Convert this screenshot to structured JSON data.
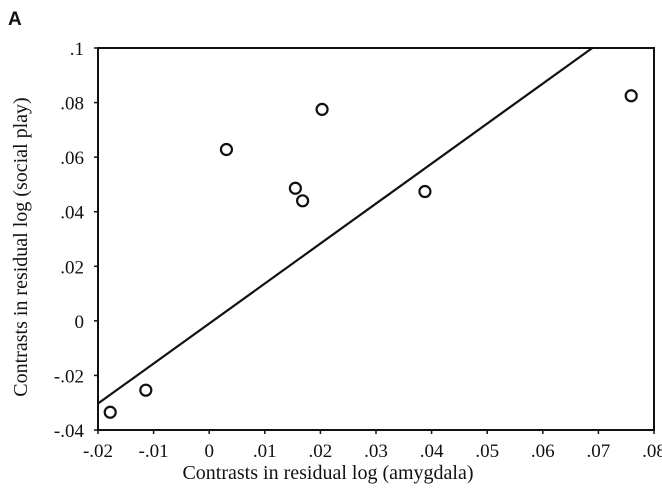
{
  "panel_label": "A",
  "chart_data": {
    "type": "scatter",
    "xlabel": "Contrasts in residual log (amygdala)",
    "ylabel": "Contrasts in residual log (social play)",
    "xlim": [
      -0.02,
      0.08
    ],
    "ylim": [
      -0.04,
      0.1
    ],
    "x_tick_labels": [
      "-.02",
      "-.01",
      "0",
      ".01",
      ".02",
      ".03",
      ".04",
      ".05",
      ".06",
      ".07",
      ".08"
    ],
    "x_tick_values": [
      -0.02,
      -0.01,
      0,
      0.01,
      0.02,
      0.03,
      0.04,
      0.05,
      0.06,
      0.07,
      0.08
    ],
    "y_tick_labels": [
      ".1",
      ".08",
      ".06",
      ".04",
      ".02",
      "0",
      "-.02",
      "-.04"
    ],
    "y_tick_values": [
      0.1,
      0.08,
      0.06,
      0.04,
      0.02,
      0,
      -0.02,
      -0.04
    ],
    "points": [
      {
        "x": -0.0178,
        "y": -0.0335
      },
      {
        "x": -0.0114,
        "y": -0.0254
      },
      {
        "x": 0.0031,
        "y": 0.0628
      },
      {
        "x": 0.0155,
        "y": 0.0486
      },
      {
        "x": 0.0168,
        "y": 0.044
      },
      {
        "x": 0.0203,
        "y": 0.0775
      },
      {
        "x": 0.0388,
        "y": 0.0474
      },
      {
        "x": 0.0759,
        "y": 0.0825
      }
    ],
    "fit_line": {
      "x": [
        -0.02,
        0.0689
      ],
      "y": [
        -0.0303,
        0.1
      ]
    },
    "grid": false,
    "legend": "none"
  }
}
